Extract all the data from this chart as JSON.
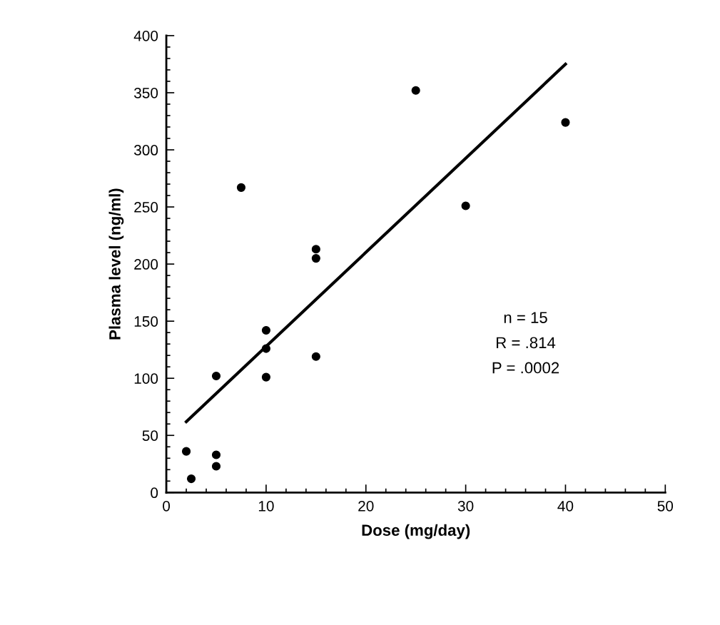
{
  "chart_data": {
    "type": "scatter",
    "xlabel": "Dose (mg/day)",
    "ylabel": "Plasma level (ng/ml)",
    "xlim": [
      0,
      50
    ],
    "ylim": [
      0,
      400
    ],
    "xticks": [
      0,
      {
        "value": 2,
        "label": null
      },
      {
        "value": 4,
        "label": null
      },
      {
        "value": 6,
        "label": null
      },
      {
        "value": 8,
        "label": null
      },
      10,
      {
        "value": 12,
        "label": null
      },
      {
        "value": 14,
        "label": null
      },
      {
        "value": 16,
        "label": null
      },
      {
        "value": 18,
        "label": null
      },
      20,
      {
        "value": 22,
        "label": null
      },
      {
        "value": 24,
        "label": null
      },
      {
        "value": 26,
        "label": null
      },
      {
        "value": 28,
        "label": null
      },
      30,
      {
        "value": 32,
        "label": null
      },
      {
        "value": 34,
        "label": null
      },
      {
        "value": 36,
        "label": null
      },
      {
        "value": 38,
        "label": null
      },
      40,
      {
        "value": 42,
        "label": null
      },
      {
        "value": 44,
        "label": null
      },
      {
        "value": 46,
        "label": null
      },
      {
        "value": 48,
        "label": null
      },
      50
    ],
    "yticks": [
      0,
      {
        "value": 10,
        "label": null
      },
      {
        "value": 20,
        "label": null
      },
      {
        "value": 30,
        "label": null
      },
      {
        "value": 40,
        "label": null
      },
      50,
      {
        "value": 60,
        "label": null
      },
      {
        "value": 70,
        "label": null
      },
      {
        "value": 80,
        "label": null
      },
      {
        "value": 90,
        "label": null
      },
      100,
      {
        "value": 110,
        "label": null
      },
      {
        "value": 120,
        "label": null
      },
      {
        "value": 130,
        "label": null
      },
      {
        "value": 140,
        "label": null
      },
      150,
      {
        "value": 160,
        "label": null
      },
      {
        "value": 170,
        "label": null
      },
      {
        "value": 180,
        "label": null
      },
      {
        "value": 190,
        "label": null
      },
      200,
      {
        "value": 210,
        "label": null
      },
      {
        "value": 220,
        "label": null
      },
      {
        "value": 230,
        "label": null
      },
      {
        "value": 240,
        "label": null
      },
      250,
      {
        "value": 260,
        "label": null
      },
      {
        "value": 270,
        "label": null
      },
      {
        "value": 280,
        "label": null
      },
      {
        "value": 290,
        "label": null
      },
      300,
      {
        "value": 310,
        "label": null
      },
      {
        "value": 320,
        "label": null
      },
      {
        "value": 330,
        "label": null
      },
      {
        "value": 340,
        "label": null
      },
      350,
      {
        "value": 360,
        "label": null
      },
      {
        "value": 370,
        "label": null
      },
      {
        "value": 380,
        "label": null
      },
      {
        "value": 390,
        "label": null
      },
      400
    ],
    "grid": false,
    "legend": false,
    "marker": "circle",
    "series": [
      {
        "color": "#000000",
        "x": [
          2,
          2.5,
          5,
          5,
          5,
          7.5,
          10,
          10,
          10,
          15,
          15,
          15,
          25,
          30,
          40
        ],
        "values": [
          36,
          12,
          102,
          33,
          23,
          267,
          142,
          126,
          101,
          213,
          205,
          119,
          352,
          251,
          324
        ]
      },
      {
        "type": "line",
        "color": "#000000",
        "marker": "none",
        "line_style": "solid",
        "x": [
          2,
          40
        ],
        "values": [
          62,
          375
        ]
      }
    ],
    "annotations": [
      "n = 15",
      "R = .814",
      "P = .0002"
    ]
  }
}
